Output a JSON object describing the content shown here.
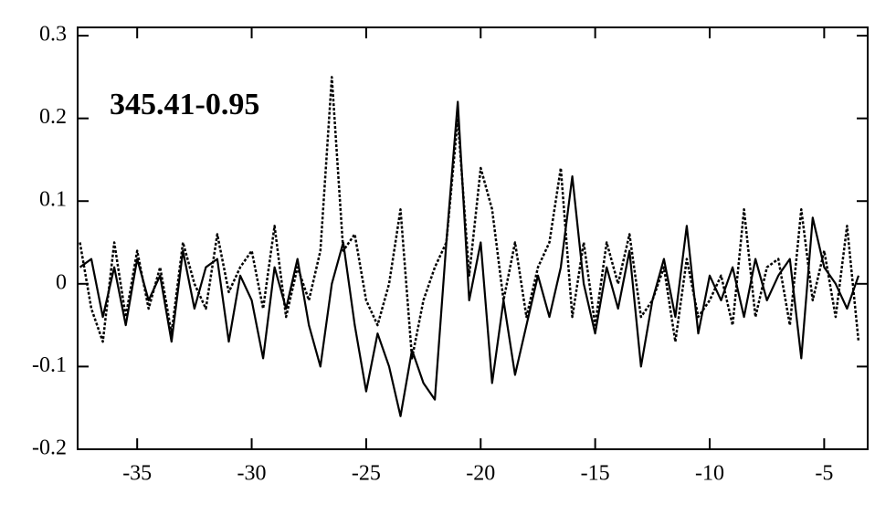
{
  "chart_data": {
    "type": "line",
    "annotation": "345.41-0.95",
    "x": [
      -37.5,
      -37,
      -36.5,
      -36,
      -35.5,
      -35,
      -34.5,
      -34,
      -33.5,
      -33,
      -32.5,
      -32,
      -31.5,
      -31,
      -30.5,
      -30,
      -29.5,
      -29,
      -28.5,
      -28,
      -27.5,
      -27,
      -26.5,
      -26,
      -25.5,
      -25,
      -24.5,
      -24,
      -23.5,
      -23,
      -22.5,
      -22,
      -21.5,
      -21,
      -20.5,
      -20,
      -19.5,
      -19,
      -18.5,
      -18,
      -17.5,
      -17,
      -16.5,
      -16,
      -15.5,
      -15,
      -14.5,
      -14,
      -13.5,
      -13,
      -12.5,
      -12,
      -11.5,
      -11,
      -10.5,
      -10,
      -9.5,
      -9,
      -8.5,
      -8,
      -7.5,
      -7,
      -6.5,
      -6,
      -5.5,
      -5,
      -4.5,
      -4,
      -3.5
    ],
    "series": [
      {
        "color": "#000000",
        "line_style": "solid",
        "values": [
          0.02,
          0.03,
          -0.04,
          0.02,
          -0.05,
          0.03,
          -0.02,
          0.01,
          -0.07,
          0.04,
          -0.03,
          0.02,
          0.03,
          -0.07,
          0.01,
          -0.02,
          -0.09,
          0.02,
          -0.03,
          0.03,
          -0.05,
          -0.1,
          0.0,
          0.05,
          -0.05,
          -0.13,
          -0.06,
          -0.1,
          -0.16,
          -0.08,
          -0.12,
          -0.14,
          0.05,
          0.22,
          -0.02,
          0.05,
          -0.12,
          -0.02,
          -0.11,
          -0.05,
          0.01,
          -0.04,
          0.02,
          0.13,
          0.0,
          -0.06,
          0.02,
          -0.03,
          0.04,
          -0.1,
          -0.02,
          0.03,
          -0.04,
          0.07,
          -0.06,
          0.01,
          -0.02,
          0.02,
          -0.04,
          0.03,
          -0.02,
          0.01,
          0.03,
          -0.09,
          0.08,
          0.02,
          0.0,
          -0.03,
          0.01
        ]
      },
      {
        "color": "#000000",
        "line_style": "dotted",
        "values": [
          0.05,
          -0.03,
          -0.07,
          0.05,
          -0.04,
          0.04,
          -0.03,
          0.02,
          -0.06,
          0.05,
          0.0,
          -0.03,
          0.06,
          -0.01,
          0.02,
          0.04,
          -0.03,
          0.07,
          -0.04,
          0.02,
          -0.02,
          0.04,
          0.25,
          0.04,
          0.06,
          -0.02,
          -0.05,
          0.0,
          0.09,
          -0.09,
          -0.02,
          0.02,
          0.05,
          0.2,
          0.01,
          0.14,
          0.09,
          -0.02,
          0.05,
          -0.04,
          0.02,
          0.05,
          0.14,
          -0.04,
          0.05,
          -0.05,
          0.05,
          0.0,
          0.06,
          -0.04,
          -0.02,
          0.02,
          -0.07,
          0.03,
          -0.04,
          -0.02,
          0.01,
          -0.05,
          0.09,
          -0.04,
          0.02,
          0.03,
          -0.05,
          0.09,
          -0.02,
          0.04,
          -0.04,
          0.07,
          -0.07
        ]
      }
    ],
    "xlim": [
      -37.6,
      -3.1
    ],
    "ylim": [
      -0.2,
      0.31
    ],
    "xticks": [
      -35,
      -30,
      -25,
      -20,
      -15,
      -10,
      -5
    ],
    "yticks": [
      -0.2,
      -0.1,
      0,
      0.1,
      0.2,
      0.3
    ]
  }
}
